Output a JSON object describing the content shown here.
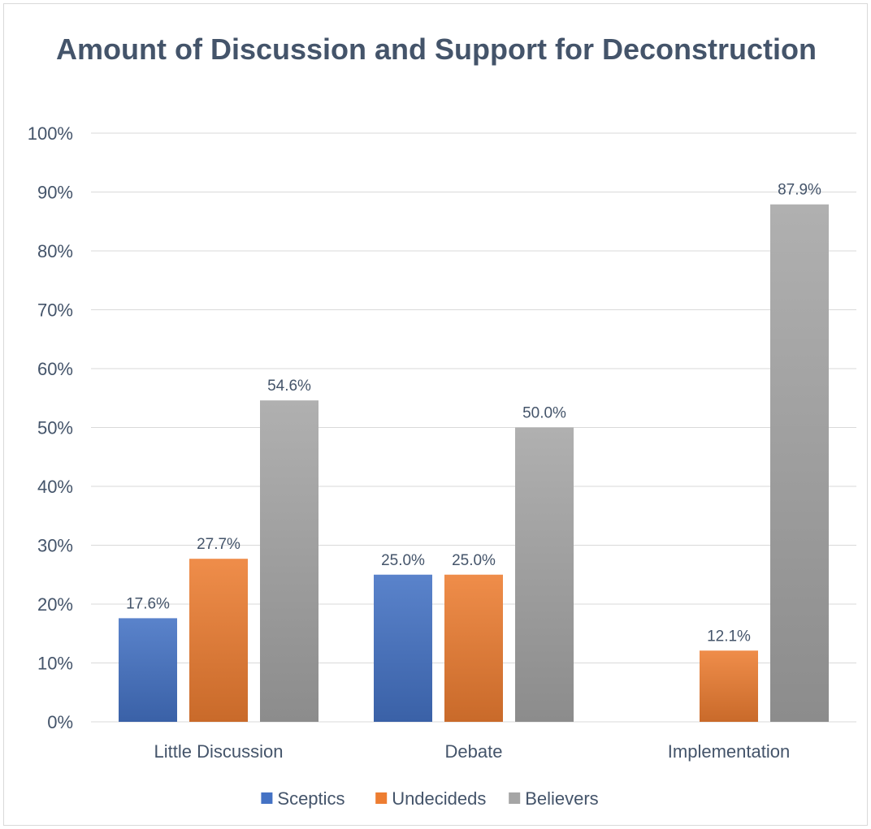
{
  "chart_data": {
    "type": "bar",
    "title": "Amount of Discussion and Support for Deconstruction",
    "categories": [
      "Little Discussion",
      "Debate",
      "Implementation"
    ],
    "series": [
      {
        "name": "Sceptics",
        "values": [
          17.6,
          25.0,
          null
        ],
        "labels": [
          "17.6%",
          "25.0%",
          null
        ],
        "color": "#4472c4"
      },
      {
        "name": "Undecideds",
        "values": [
          27.7,
          25.0,
          12.1
        ],
        "labels": [
          "27.7%",
          "25.0%",
          "12.1%"
        ],
        "color": "#ed7d31"
      },
      {
        "name": "Believers",
        "values": [
          54.6,
          50.0,
          87.9
        ],
        "labels": [
          "54.6%",
          "50.0%",
          "87.9%"
        ],
        "color": "#a5a5a5"
      }
    ],
    "yticks": [
      "0%",
      "10%",
      "20%",
      "30%",
      "40%",
      "50%",
      "60%",
      "70%",
      "80%",
      "90%",
      "100%"
    ],
    "ylim": [
      0,
      100
    ],
    "grid": true,
    "legend": "bottom"
  }
}
